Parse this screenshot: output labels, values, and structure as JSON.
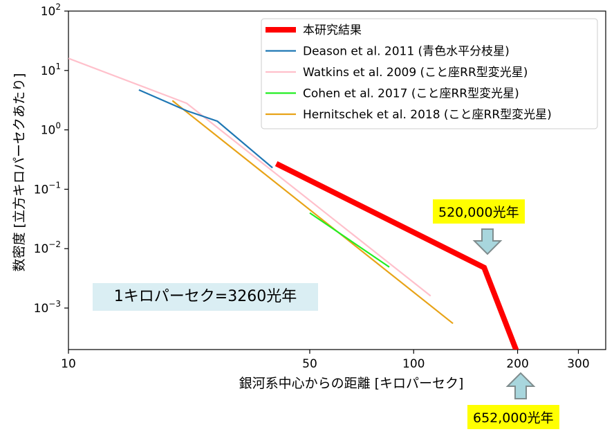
{
  "chart_data": {
    "type": "line",
    "xlabel": "銀河系中心からの距離 [キロパーセク]",
    "ylabel": "数密度 [立方キロパーセクあたり]",
    "x_scale": "log",
    "y_scale": "log",
    "xlim": [
      10,
      360
    ],
    "ylim": [
      0.0002,
      100
    ],
    "x_ticks": [
      {
        "value": 10,
        "label": "10"
      },
      {
        "value": 50,
        "label": "50"
      },
      {
        "value": 100,
        "label": "100"
      },
      {
        "value": 200,
        "label": "200"
      },
      {
        "value": 300,
        "label": "300"
      }
    ],
    "y_ticks": [
      {
        "value": 100,
        "base": "10",
        "exp": "2"
      },
      {
        "value": 10,
        "base": "10",
        "exp": "1"
      },
      {
        "value": 1,
        "base": "10",
        "exp": "0"
      },
      {
        "value": 0.1,
        "base": "10",
        "exp": "−1"
      },
      {
        "value": 0.01,
        "base": "10",
        "exp": "−2"
      },
      {
        "value": 0.001,
        "base": "10",
        "exp": "−3"
      }
    ],
    "legend_position": "top-right",
    "grid": false,
    "series": [
      {
        "name": "本研究結果",
        "color": "#ff0000",
        "width": 8,
        "points": [
          [
            40,
            0.27
          ],
          [
            160,
            0.0048
          ],
          [
            200,
            0.00017
          ]
        ]
      },
      {
        "name": "Deason et al. 2011 (青色水平分枝星)",
        "color": "#1f77b4",
        "width": 2.2,
        "points": [
          [
            16,
            4.7
          ],
          [
            22,
            2.1
          ],
          [
            27,
            1.4
          ],
          [
            39,
            0.23
          ]
        ]
      },
      {
        "name": "Watkins et al. 2009 (こと座RR型変光星)",
        "color": "#ffc0cb",
        "width": 2.2,
        "points": [
          [
            10,
            16
          ],
          [
            22,
            2.8
          ],
          [
            112,
            0.0016
          ]
        ]
      },
      {
        "name": "Cohen et al. 2017 (こと座RR型変光星)",
        "color": "#22ee22",
        "width": 2.2,
        "points": [
          [
            50,
            0.04
          ],
          [
            85,
            0.0049
          ]
        ]
      },
      {
        "name": "Hernitschek et al. 2018 (こと座RR型変光星)",
        "color": "#e8a317",
        "width": 2.2,
        "points": [
          [
            20,
            3.1
          ],
          [
            130,
            0.00055
          ]
        ]
      }
    ],
    "annotations": [
      {
        "text": "520,000光年"
      },
      {
        "text": "652,000光年"
      },
      {
        "text": "1キロパーセク=3260光年"
      }
    ]
  }
}
